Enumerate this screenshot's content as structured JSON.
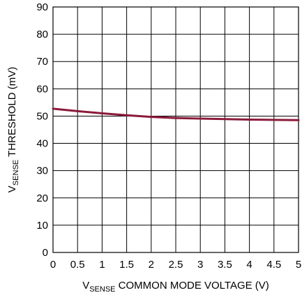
{
  "chart_data": {
    "type": "line",
    "xlabel": {
      "prefix": "V",
      "sub": "SENSE",
      "rest": " COMMON MODE VOLTAGE (V)"
    },
    "ylabel": {
      "prefix": "V",
      "sub": "SENSE",
      "rest": " THRESHOLD (mV)"
    },
    "xlim": [
      0,
      5
    ],
    "ylim": [
      0,
      90
    ],
    "x_ticks": [
      0,
      0.5,
      1,
      1.5,
      2,
      2.5,
      3,
      3.5,
      4,
      4.5,
      5
    ],
    "y_ticks": [
      0,
      10,
      20,
      30,
      40,
      50,
      60,
      70,
      80,
      90
    ],
    "grid": true,
    "series": [
      {
        "color": "#8b1a3a",
        "x": [
          0,
          0.5,
          1,
          1.5,
          2,
          2.5,
          3,
          3.5,
          4,
          4.5,
          5
        ],
        "y": [
          52.7,
          51.8,
          51.0,
          50.3,
          49.7,
          49.3,
          49.1,
          48.9,
          48.7,
          48.6,
          48.5
        ]
      }
    ]
  }
}
